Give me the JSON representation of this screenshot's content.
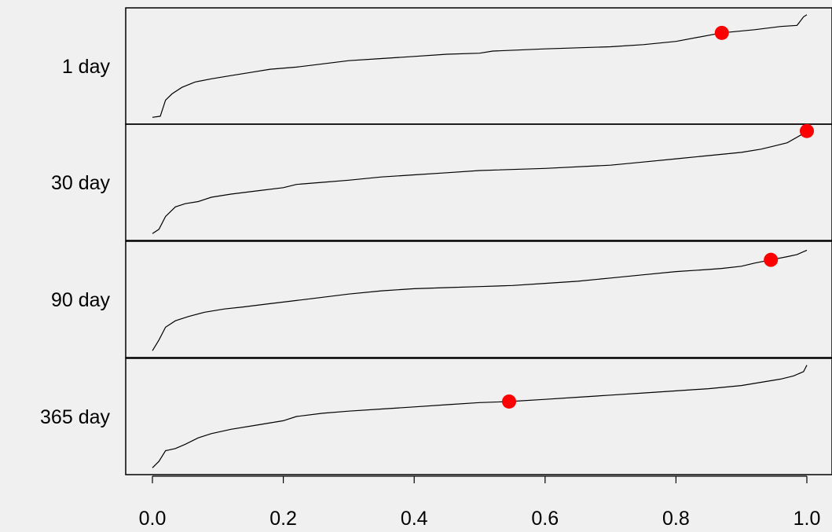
{
  "chart_data": {
    "type": "line",
    "xlim": [
      0.0,
      1.0
    ],
    "x_ticks": [
      "0.0",
      "0.2",
      "0.4",
      "0.6",
      "0.8",
      "1.0"
    ],
    "panels": [
      {
        "label": "1 day",
        "highlight_color": "#ff0000",
        "highlight": {
          "x": 0.87,
          "y": 0.81
        },
        "x": [
          0.0,
          0.012,
          0.02,
          0.03,
          0.045,
          0.065,
          0.09,
          0.12,
          0.15,
          0.18,
          0.22,
          0.26,
          0.3,
          0.35,
          0.4,
          0.45,
          0.5,
          0.52,
          0.6,
          0.7,
          0.75,
          0.8,
          0.87,
          0.92,
          0.96,
          0.985,
          0.995,
          1.0
        ],
        "y": [
          0.02,
          0.03,
          0.18,
          0.24,
          0.3,
          0.35,
          0.38,
          0.41,
          0.44,
          0.47,
          0.49,
          0.52,
          0.55,
          0.57,
          0.59,
          0.61,
          0.62,
          0.64,
          0.66,
          0.68,
          0.7,
          0.73,
          0.81,
          0.84,
          0.87,
          0.88,
          0.96,
          0.98
        ]
      },
      {
        "label": "30 day",
        "highlight_color": "#ff0000",
        "highlight": {
          "x": 1.0,
          "y": 0.98
        },
        "x": [
          0.0,
          0.01,
          0.02,
          0.035,
          0.05,
          0.07,
          0.09,
          0.12,
          0.16,
          0.2,
          0.22,
          0.26,
          0.3,
          0.35,
          0.4,
          0.45,
          0.5,
          0.6,
          0.7,
          0.75,
          0.8,
          0.85,
          0.9,
          0.93,
          0.95,
          0.97,
          0.99,
          1.0
        ],
        "y": [
          0.02,
          0.06,
          0.18,
          0.27,
          0.3,
          0.32,
          0.36,
          0.39,
          0.42,
          0.45,
          0.48,
          0.5,
          0.52,
          0.55,
          0.57,
          0.59,
          0.61,
          0.63,
          0.66,
          0.69,
          0.72,
          0.75,
          0.78,
          0.81,
          0.84,
          0.87,
          0.94,
          0.98
        ]
      },
      {
        "label": "90 day",
        "highlight_color": "#ff0000",
        "highlight": {
          "x": 0.945,
          "y": 0.87
        },
        "x": [
          0.0,
          0.01,
          0.02,
          0.035,
          0.055,
          0.08,
          0.11,
          0.14,
          0.18,
          0.22,
          0.26,
          0.3,
          0.35,
          0.4,
          0.45,
          0.5,
          0.55,
          0.6,
          0.65,
          0.7,
          0.75,
          0.8,
          0.85,
          0.87,
          0.9,
          0.92,
          0.945,
          0.97,
          0.985,
          1.0
        ],
        "y": [
          0.02,
          0.12,
          0.24,
          0.3,
          0.34,
          0.38,
          0.41,
          0.43,
          0.46,
          0.49,
          0.52,
          0.55,
          0.58,
          0.6,
          0.61,
          0.62,
          0.63,
          0.65,
          0.67,
          0.7,
          0.73,
          0.76,
          0.78,
          0.79,
          0.81,
          0.84,
          0.87,
          0.9,
          0.92,
          0.96
        ]
      },
      {
        "label": "365 day",
        "highlight_color": "#ff0000",
        "highlight": {
          "x": 0.545,
          "y": 0.64
        },
        "x": [
          0.0,
          0.01,
          0.02,
          0.035,
          0.05,
          0.07,
          0.09,
          0.12,
          0.16,
          0.2,
          0.22,
          0.26,
          0.3,
          0.35,
          0.4,
          0.45,
          0.5,
          0.545,
          0.6,
          0.65,
          0.7,
          0.75,
          0.8,
          0.85,
          0.9,
          0.93,
          0.96,
          0.98,
          0.995,
          1.0
        ],
        "y": [
          0.02,
          0.08,
          0.18,
          0.2,
          0.24,
          0.3,
          0.34,
          0.38,
          0.42,
          0.46,
          0.5,
          0.53,
          0.55,
          0.57,
          0.59,
          0.61,
          0.63,
          0.64,
          0.66,
          0.68,
          0.7,
          0.72,
          0.74,
          0.76,
          0.79,
          0.82,
          0.85,
          0.88,
          0.92,
          0.98
        ]
      }
    ]
  }
}
